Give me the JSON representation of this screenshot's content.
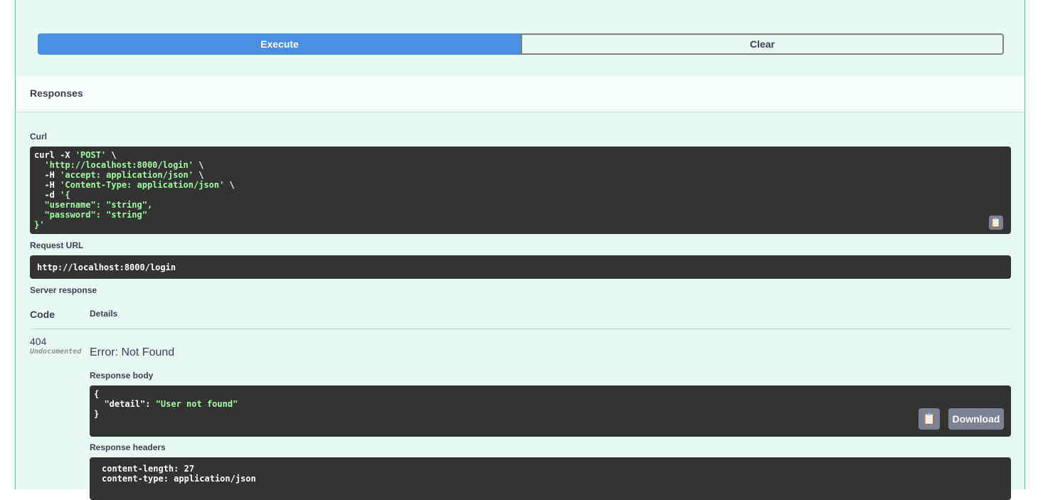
{
  "buttons": {
    "execute": "Execute",
    "clear": "Clear"
  },
  "responses_title": "Responses",
  "curl": {
    "label": "Curl",
    "lines": [
      [
        {
          "t": "curl -X ",
          "c": "w"
        },
        {
          "t": "'POST'",
          "c": "g"
        },
        {
          "t": " \\",
          "c": "w"
        }
      ],
      [
        {
          "t": "  'http://localhost:8000/login'",
          "c": "g"
        },
        {
          "t": " \\",
          "c": "w"
        }
      ],
      [
        {
          "t": "  -H ",
          "c": "w"
        },
        {
          "t": "'accept: application/json'",
          "c": "g"
        },
        {
          "t": " \\",
          "c": "w"
        }
      ],
      [
        {
          "t": "  -H ",
          "c": "w"
        },
        {
          "t": "'Content-Type: application/json'",
          "c": "g"
        },
        {
          "t": " \\",
          "c": "w"
        }
      ],
      [
        {
          "t": "  -d ",
          "c": "w"
        },
        {
          "t": "'{",
          "c": "g"
        }
      ],
      [
        {
          "t": "  \"username\": \"string\",",
          "c": "g"
        }
      ],
      [
        {
          "t": "  \"password\": \"string\"",
          "c": "g"
        }
      ],
      [
        {
          "t": "}'",
          "c": "g"
        }
      ]
    ]
  },
  "request_url": {
    "label": "Request URL",
    "value": "http://localhost:8000/login"
  },
  "server_response": {
    "label": "Server response",
    "code_header": "Code",
    "details_header": "Details",
    "code": "404",
    "undocumented": "Undocumented",
    "error": "Error: Not Found",
    "body_label": "Response body",
    "body_open": "{",
    "body_key": "  \"detail\"",
    "body_sep": ": ",
    "body_value": "\"User not found\"",
    "body_close": "}",
    "download": "Download",
    "headers_label": "Response headers",
    "headers": [
      "content-length: 27",
      "content-type: application/json"
    ]
  }
}
